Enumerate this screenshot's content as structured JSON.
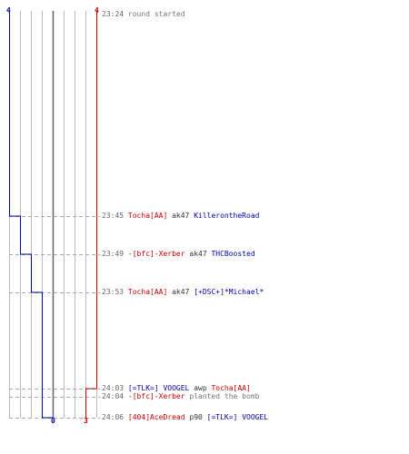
{
  "scores": {
    "blue_start": "4",
    "red_start": "4",
    "blue_end": "0",
    "red_end": "3"
  },
  "colors": {
    "blue": "#0000aa",
    "red": "#cc0000",
    "grid": "#bbbbbb",
    "dash": "#aaaaaa",
    "text": "#333333",
    "time": "#666666"
  },
  "events": [
    {
      "time": "23:24",
      "text": "round started",
      "type": "info"
    },
    {
      "time": "23:45",
      "killer": "Tocha[AA]",
      "killer_team": "red",
      "weapon": "ak47",
      "victim": "KillerontheRoad",
      "victim_team": "blue",
      "type": "kill"
    },
    {
      "time": "23:49",
      "killer": "-[bfc]-Xerber",
      "killer_team": "red",
      "weapon": "ak47",
      "victim": "THCBoosted",
      "victim_team": "blue",
      "type": "kill"
    },
    {
      "time": "23:53",
      "killer": "Tocha[AA]",
      "killer_team": "red",
      "weapon": "ak47",
      "victim": "[+DSC+]*Michael*",
      "victim_team": "blue",
      "type": "kill"
    },
    {
      "time": "24:03",
      "killer": "[=TLK=] VOOGEL",
      "killer_team": "blue",
      "weapon": "awp",
      "victim": "Tocha[AA]",
      "victim_team": "red",
      "type": "kill"
    },
    {
      "time": "24:04",
      "actor": "-[bfc]-Xerber",
      "actor_team": "red",
      "text": "planted the bomb",
      "type": "action"
    },
    {
      "time": "24:06",
      "killer": "[404]AceDread",
      "killer_team": "red",
      "weapon": "p90",
      "victim": "[=TLK=] VOOGEL",
      "victim_team": "blue",
      "type": "kill"
    }
  ]
}
